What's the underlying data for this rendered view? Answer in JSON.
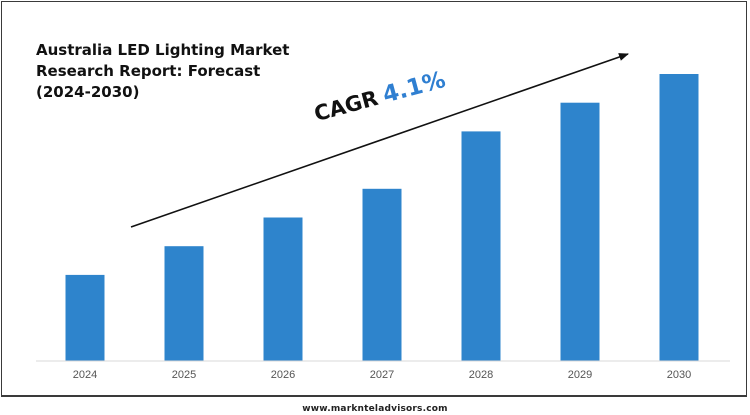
{
  "chart_data": {
    "type": "bar",
    "title": "Australia LED Lighting Market\nResearch Report: Forecast\n(2024-2030)",
    "categories": [
      "2024",
      "2025",
      "2026",
      "2027",
      "2028",
      "2029",
      "2030"
    ],
    "values": [
      30,
      40,
      50,
      60,
      80,
      90,
      100
    ],
    "ylim": [
      0,
      100
    ],
    "grid": false,
    "bar_color": "#2e84cc",
    "annotation": {
      "label": "CAGR",
      "value": "4.1%",
      "value_color": "#2f7fd1",
      "arrow_color": "#111111"
    }
  },
  "footer": {
    "website": "www.marknteladvisors.com"
  }
}
